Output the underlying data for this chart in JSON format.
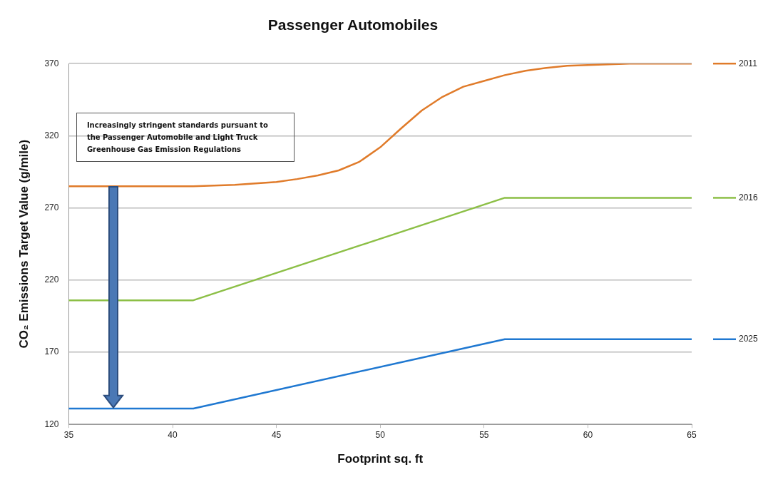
{
  "chart_data": {
    "type": "line",
    "title": "Passenger Automobiles",
    "xlabel": "Footprint sq. ft",
    "ylabel": "CO₂ Emissions Target Value (g/mile)",
    "xlim": [
      35,
      65
    ],
    "xticks": [
      35,
      40,
      45,
      50,
      55,
      60,
      65
    ],
    "ylim": [
      120,
      370
    ],
    "yticks": [
      120,
      170,
      220,
      270,
      320,
      370
    ],
    "grid": "y",
    "legend": "right",
    "marker": "none",
    "line_style": "solid",
    "annotations": [
      "Increasingly stringent standards pursuant to the Passenger Automobile and Light Truck Greenhouse Gas Emission Regulations"
    ],
    "series": [
      {
        "name": "2011",
        "color": "#e07b2a",
        "x": [
          35,
          41,
          43,
          45,
          46,
          47,
          48,
          49,
          50,
          51,
          52,
          53,
          54,
          55,
          56,
          57,
          58,
          59,
          60,
          62,
          65
        ],
        "values": [
          285,
          285,
          286,
          288,
          290,
          292.5,
          296,
          302,
          312,
          325,
          337.5,
          347,
          354,
          358,
          362,
          365,
          367,
          368.5,
          369,
          370,
          370
        ]
      },
      {
        "name": "2016",
        "color": "#8cbf46",
        "x": [
          35,
          41,
          56,
          65
        ],
        "values": [
          206,
          206,
          277,
          277
        ]
      },
      {
        "name": "2025",
        "color": "#1f78d1",
        "x": [
          35,
          41,
          56,
          65
        ],
        "values": [
          131,
          131,
          179,
          179
        ]
      }
    ]
  }
}
